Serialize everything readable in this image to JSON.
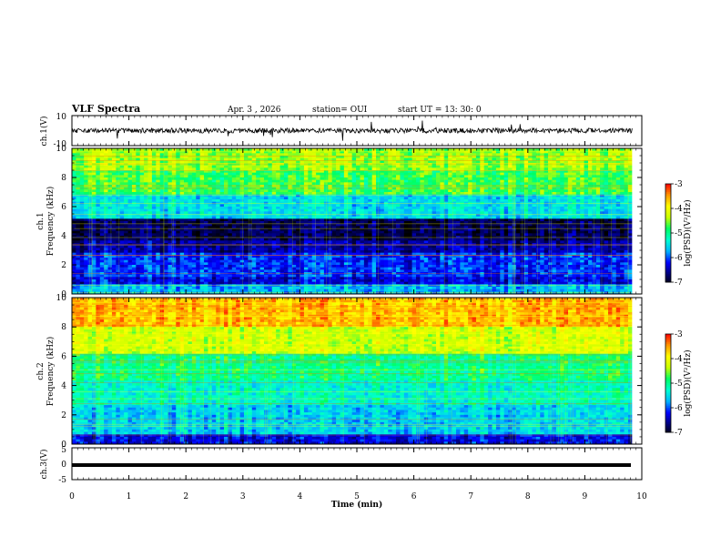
{
  "header": {
    "title": "VLF Spectra",
    "date": "Apr. 3 , 2026",
    "station": "station= OUI",
    "start": "start UT = 13: 30: 0"
  },
  "colors": {
    "black": "#000000",
    "colormap": [
      "#000000",
      "#00007a",
      "#0000ff",
      "#00b4ff",
      "#00ffd2",
      "#00ff64",
      "#c8ff00",
      "#ffff00",
      "#ff9600",
      "#ff0000",
      "#ffffff"
    ]
  },
  "chart_data": [
    {
      "type": "line",
      "panel": "ch1-waveform",
      "ylabel": "ch.1(V)",
      "ylim": [
        -10,
        10
      ],
      "yticks": [
        "10",
        "-10"
      ],
      "series": [
        {
          "values_description_free": true,
          "baseline": 0
        }
      ]
    },
    {
      "type": "heatmap",
      "panel": "ch1-spectrogram",
      "ylabel": "ch.1\nFrequency (kHz)",
      "ylim": [
        0,
        10
      ],
      "yticks": [
        "0",
        "2",
        "4",
        "6",
        "8",
        "10"
      ],
      "xlim": [
        0,
        10
      ],
      "colorbar": {
        "label": "log(PSD)(V²/Hz)",
        "range": [
          -7,
          -3
        ],
        "ticks": [
          "-3",
          "-4",
          "-5",
          "-6",
          "-7"
        ]
      },
      "bands": [
        {
          "f": [
            0,
            0.6
          ],
          "level": 0.35
        },
        {
          "f": [
            0.6,
            1.2
          ],
          "level": 0.2
        },
        {
          "f": [
            1.2,
            2.8
          ],
          "level": 0.25
        },
        {
          "f": [
            2.8,
            3.6
          ],
          "level": 0.15
        },
        {
          "f": [
            3.6,
            5.2
          ],
          "level": 0.08
        },
        {
          "f": [
            5.2,
            6.8
          ],
          "level": 0.4
        },
        {
          "f": [
            6.8,
            8.5
          ],
          "level": 0.58
        },
        {
          "f": [
            8.5,
            10
          ],
          "level": 0.65
        }
      ]
    },
    {
      "type": "heatmap",
      "panel": "ch2-spectrogram",
      "ylabel": "ch.2\nFrequency (kHz)",
      "ylim": [
        0,
        10
      ],
      "yticks": [
        "0",
        "2",
        "4",
        "6",
        "8",
        "10"
      ],
      "xlim": [
        0,
        10
      ],
      "colorbar": {
        "label": "log(PSD)(V²/Hz)",
        "range": [
          -7,
          -3
        ],
        "ticks": [
          "-3",
          "-4",
          "-5",
          "-6",
          "-7"
        ]
      },
      "bands": [
        {
          "f": [
            0,
            0.6
          ],
          "level": 0.2
        },
        {
          "f": [
            0.6,
            2.6
          ],
          "level": 0.38
        },
        {
          "f": [
            2.6,
            4.4
          ],
          "level": 0.45
        },
        {
          "f": [
            4.4,
            6.2
          ],
          "level": 0.52
        },
        {
          "f": [
            6.2,
            8.0
          ],
          "level": 0.7
        },
        {
          "f": [
            8.0,
            10
          ],
          "level": 0.85
        }
      ]
    },
    {
      "type": "line",
      "panel": "ch3-waveform",
      "ylabel": "ch.3(V)",
      "ylim": [
        -5,
        5
      ],
      "yticks": [
        "5",
        "0",
        "-5"
      ],
      "series": [
        {
          "baseline": -1
        }
      ]
    }
  ],
  "xaxis": {
    "label": "Time (min)",
    "ticks": [
      "0",
      "1",
      "2",
      "3",
      "4",
      "5",
      "6",
      "7",
      "8",
      "9",
      "10"
    ],
    "range": [
      0,
      10
    ],
    "data_end": 9.83
  }
}
